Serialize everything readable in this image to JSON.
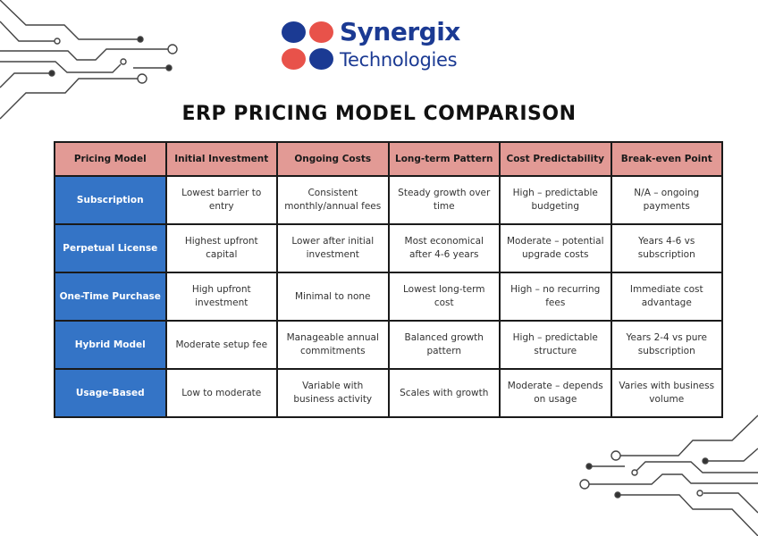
{
  "logo": {
    "name": "Synergix",
    "subtitle": "Technologies",
    "colors": {
      "blue": "#1b3a93",
      "red": "#e8524a"
    }
  },
  "title": "ERP PRICING MODEL COMPARISON",
  "colors": {
    "header_bg": "#e29a95",
    "row_header_bg": "#3474c6"
  },
  "table": {
    "headers": [
      "Pricing Model",
      "Initial Investment",
      "Ongoing Costs",
      "Long-term Pattern",
      "Cost Predictability",
      "Break-even Point"
    ],
    "rows": [
      [
        "Subscription",
        "Lowest barrier to entry",
        "Consistent monthly/annual fees",
        "Steady growth over time",
        "High – predictable budgeting",
        "N/A – ongoing payments"
      ],
      [
        "Perpetual License",
        "Highest upfront capital",
        "Lower after initial investment",
        "Most economical after 4-6 years",
        "Moderate – potential upgrade costs",
        "Years 4-6 vs subscription"
      ],
      [
        "One-Time Purchase",
        "High upfront investment",
        "Minimal to none",
        "Lowest long-term cost",
        "High – no recurring fees",
        "Immediate cost advantage"
      ],
      [
        "Hybrid Model",
        "Moderate setup fee",
        "Manageable annual commitments",
        "Balanced growth pattern",
        "High – predictable structure",
        "Years 2-4 vs pure subscription"
      ],
      [
        "Usage-Based",
        "Low to moderate",
        "Variable with business activity",
        "Scales with growth",
        "Moderate – depends on usage",
        "Varies with business volume"
      ]
    ]
  }
}
